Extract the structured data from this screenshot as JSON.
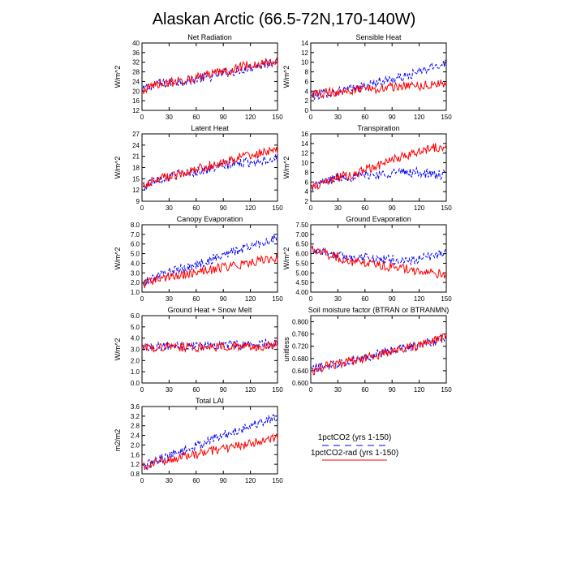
{
  "figure_title": "Alaskan Arctic (66.5-72N,170-140W)",
  "colors": {
    "series_a": "#0000ff",
    "series_b": "#ff0000",
    "axis": "#000000",
    "background": "#ffffff"
  },
  "legend": {
    "placement": "right of the bottom panel",
    "entries": [
      {
        "label": "1pctCO2 (yrs 1-150)",
        "color": "#0000ff",
        "style": "dashed"
      },
      {
        "label": "1pctCO2-rad (yrs 1-150)",
        "color": "#ff0000",
        "style": "solid"
      }
    ]
  },
  "chart_data": [
    {
      "type": "line",
      "title": "Net Radiation",
      "ylabel": "W/m^2",
      "xlim": [
        0,
        150
      ],
      "x_ticks": [
        "0",
        "30",
        "60",
        "90",
        "120",
        "150"
      ],
      "ylim": [
        12,
        40
      ],
      "y_ticks": [
        "12",
        "16",
        "20",
        "24",
        "28",
        "32",
        "36",
        "40"
      ],
      "grid": false,
      "series": [
        {
          "name": "1pctCO2 (yrs 1-150)",
          "color": "#0000ff",
          "style": "dashed",
          "x": [
            1,
            15,
            30,
            45,
            60,
            75,
            90,
            105,
            120,
            135,
            150
          ],
          "values": [
            20.5,
            23,
            23.5,
            24,
            25,
            26,
            27.5,
            28.5,
            30,
            31,
            33
          ]
        },
        {
          "name": "1pctCO2-rad (yrs 1-150)",
          "color": "#ff0000",
          "style": "solid",
          "x": [
            1,
            15,
            30,
            45,
            60,
            75,
            90,
            105,
            120,
            135,
            150
          ],
          "values": [
            20,
            23,
            23.5,
            24.5,
            25.5,
            27,
            28,
            29.5,
            31,
            31.5,
            32
          ]
        }
      ]
    },
    {
      "type": "line",
      "title": "Sensible Heat",
      "ylabel": "W/m^2",
      "xlim": [
        0,
        150
      ],
      "x_ticks": [
        "0",
        "30",
        "60",
        "90",
        "120",
        "150"
      ],
      "ylim": [
        0,
        14
      ],
      "y_ticks": [
        "0",
        "2",
        "4",
        "6",
        "8",
        "10",
        "12",
        "14"
      ],
      "grid": false,
      "series": [
        {
          "name": "1pctCO2 (yrs 1-150)",
          "color": "#0000ff",
          "style": "dashed",
          "x": [
            1,
            15,
            30,
            45,
            60,
            75,
            90,
            105,
            120,
            135,
            150
          ],
          "values": [
            3,
            3.5,
            4,
            4.5,
            5,
            6,
            6.5,
            7,
            8,
            9,
            10
          ]
        },
        {
          "name": "1pctCO2-rad (yrs 1-150)",
          "color": "#ff0000",
          "style": "solid",
          "x": [
            1,
            15,
            30,
            45,
            60,
            75,
            90,
            105,
            120,
            135,
            150
          ],
          "values": [
            3.5,
            3.5,
            4,
            4,
            4.5,
            4.5,
            5,
            5,
            5,
            5.5,
            5.5
          ]
        }
      ]
    },
    {
      "type": "line",
      "title": "Latent Heat",
      "ylabel": "W/m^2",
      "xlim": [
        0,
        150
      ],
      "x_ticks": [
        "0",
        "30",
        "60",
        "90",
        "120",
        "150"
      ],
      "ylim": [
        9,
        27
      ],
      "y_ticks": [
        "9",
        "12",
        "15",
        "18",
        "21",
        "24",
        "27"
      ],
      "grid": false,
      "series": [
        {
          "name": "1pctCO2 (yrs 1-150)",
          "color": "#0000ff",
          "style": "dashed",
          "x": [
            1,
            15,
            30,
            45,
            60,
            75,
            90,
            105,
            120,
            135,
            150
          ],
          "values": [
            12.5,
            15,
            15.5,
            16.5,
            17,
            17.5,
            18.5,
            19,
            19.5,
            20,
            20.5
          ]
        },
        {
          "name": "1pctCO2-rad (yrs 1-150)",
          "color": "#ff0000",
          "style": "solid",
          "x": [
            1,
            15,
            30,
            45,
            60,
            75,
            90,
            105,
            120,
            135,
            150
          ],
          "values": [
            13,
            15,
            15.5,
            16.5,
            17.5,
            18.5,
            19.5,
            20.5,
            21.5,
            22,
            22.5
          ]
        }
      ]
    },
    {
      "type": "line",
      "title": "Transpiration",
      "ylabel": "W/m^2",
      "xlim": [
        0,
        150
      ],
      "x_ticks": [
        "0",
        "30",
        "60",
        "90",
        "120",
        "150"
      ],
      "ylim": [
        2,
        16
      ],
      "y_ticks": [
        "2",
        "4",
        "6",
        "8",
        "10",
        "12",
        "14",
        "16"
      ],
      "grid": false,
      "series": [
        {
          "name": "1pctCO2 (yrs 1-150)",
          "color": "#0000ff",
          "style": "dashed",
          "x": [
            1,
            15,
            30,
            45,
            60,
            75,
            90,
            105,
            120,
            135,
            150
          ],
          "values": [
            5,
            6,
            7,
            7,
            7.5,
            7.5,
            8,
            8,
            8,
            7.5,
            7.5
          ]
        },
        {
          "name": "1pctCO2-rad (yrs 1-150)",
          "color": "#ff0000",
          "style": "solid",
          "x": [
            1,
            15,
            30,
            45,
            60,
            75,
            90,
            105,
            120,
            135,
            150
          ],
          "values": [
            5,
            6,
            7,
            7.5,
            8.5,
            9.5,
            10.5,
            11.5,
            12.5,
            13,
            13.5
          ]
        }
      ]
    },
    {
      "type": "line",
      "title": "Canopy Evaporation",
      "ylabel": "W/m^2",
      "xlim": [
        0,
        150
      ],
      "x_ticks": [
        "0",
        "30",
        "60",
        "90",
        "120",
        "150"
      ],
      "ylim": [
        1.0,
        8.0
      ],
      "y_ticks": [
        "1.0",
        "2.0",
        "3.0",
        "4.0",
        "5.0",
        "6.0",
        "7.0",
        "8.0"
      ],
      "grid": false,
      "series": [
        {
          "name": "1pctCO2 (yrs 1-150)",
          "color": "#0000ff",
          "style": "dashed",
          "x": [
            1,
            15,
            30,
            45,
            60,
            75,
            90,
            105,
            120,
            135,
            150
          ],
          "values": [
            1.8,
            2.6,
            3.1,
            3.4,
            3.8,
            4.3,
            4.9,
            5.3,
            5.8,
            6.2,
            6.6
          ]
        },
        {
          "name": "1pctCO2-rad (yrs 1-150)",
          "color": "#ff0000",
          "style": "solid",
          "x": [
            1,
            15,
            30,
            45,
            60,
            75,
            90,
            105,
            120,
            135,
            150
          ],
          "values": [
            1.8,
            2.3,
            2.6,
            2.8,
            3.0,
            3.3,
            3.6,
            3.8,
            4.1,
            4.4,
            4.6
          ]
        }
      ]
    },
    {
      "type": "line",
      "title": "Ground Evaporation",
      "ylabel": "W/m^2",
      "xlim": [
        0,
        150
      ],
      "x_ticks": [
        "0",
        "30",
        "60",
        "90",
        "120",
        "150"
      ],
      "ylim": [
        4.0,
        7.5
      ],
      "y_ticks": [
        "4.00",
        "4.50",
        "5.00",
        "5.50",
        "6.00",
        "6.50",
        "7.00",
        "7.50"
      ],
      "grid": false,
      "series": [
        {
          "name": "1pctCO2 (yrs 1-150)",
          "color": "#0000ff",
          "style": "dashed",
          "x": [
            1,
            15,
            30,
            45,
            60,
            75,
            90,
            105,
            120,
            135,
            150
          ],
          "values": [
            6.2,
            6.1,
            5.9,
            5.8,
            5.8,
            5.7,
            5.7,
            5.6,
            5.7,
            5.9,
            6.1
          ]
        },
        {
          "name": "1pctCO2-rad (yrs 1-150)",
          "color": "#ff0000",
          "style": "solid",
          "x": [
            1,
            15,
            30,
            45,
            60,
            75,
            90,
            105,
            120,
            135,
            150
          ],
          "values": [
            6.2,
            6.0,
            5.8,
            5.6,
            5.5,
            5.4,
            5.3,
            5.2,
            5.1,
            5.0,
            4.9
          ]
        }
      ]
    },
    {
      "type": "line",
      "title": "Ground Heat + Snow Melt",
      "ylabel": "W/m^2",
      "xlim": [
        0,
        150
      ],
      "x_ticks": [
        "0",
        "30",
        "60",
        "90",
        "120",
        "150"
      ],
      "ylim": [
        0.0,
        6.0
      ],
      "y_ticks": [
        "0.0",
        "1.0",
        "2.0",
        "3.0",
        "4.0",
        "5.0",
        "6.0"
      ],
      "grid": false,
      "series": [
        {
          "name": "1pctCO2 (yrs 1-150)",
          "color": "#0000ff",
          "style": "dashed",
          "x": [
            1,
            15,
            30,
            45,
            60,
            75,
            90,
            105,
            120,
            135,
            150
          ],
          "values": [
            3.2,
            3.3,
            3.3,
            3.3,
            3.3,
            3.4,
            3.4,
            3.4,
            3.4,
            3.5,
            3.5
          ]
        },
        {
          "name": "1pctCO2-rad (yrs 1-150)",
          "color": "#ff0000",
          "style": "solid",
          "x": [
            1,
            15,
            30,
            45,
            60,
            75,
            90,
            105,
            120,
            135,
            150
          ],
          "values": [
            3.2,
            3.2,
            3.2,
            3.2,
            3.2,
            3.2,
            3.3,
            3.3,
            3.3,
            3.3,
            3.4
          ]
        }
      ]
    },
    {
      "type": "line",
      "title": "Soil moisture factor (BTRAN or BTRANMN)",
      "ylabel": "unitless",
      "xlim": [
        0,
        150
      ],
      "x_ticks": [
        "0",
        "30",
        "60",
        "90",
        "120",
        "150"
      ],
      "ylim": [
        0.6,
        0.82
      ],
      "y_ticks": [
        "0.600",
        "0.640",
        "0.680",
        "0.720",
        "0.760",
        "0.800"
      ],
      "grid": false,
      "series": [
        {
          "name": "1pctCO2 (yrs 1-150)",
          "color": "#0000ff",
          "style": "dashed",
          "x": [
            1,
            15,
            30,
            45,
            60,
            75,
            90,
            105,
            120,
            135,
            150
          ],
          "values": [
            0.645,
            0.655,
            0.665,
            0.675,
            0.685,
            0.695,
            0.705,
            0.715,
            0.725,
            0.735,
            0.745
          ]
        },
        {
          "name": "1pctCO2-rad (yrs 1-150)",
          "color": "#ff0000",
          "style": "solid",
          "x": [
            1,
            15,
            30,
            45,
            60,
            75,
            90,
            105,
            120,
            135,
            150
          ],
          "values": [
            0.64,
            0.652,
            0.662,
            0.672,
            0.682,
            0.692,
            0.702,
            0.712,
            0.722,
            0.735,
            0.75
          ]
        }
      ]
    },
    {
      "type": "line",
      "title": "Total LAI",
      "ylabel": "m2/m2",
      "xlim": [
        0,
        150
      ],
      "x_ticks": [
        "0",
        "30",
        "60",
        "90",
        "120",
        "150"
      ],
      "ylim": [
        0.8,
        3.6
      ],
      "y_ticks": [
        "0.8",
        "1.2",
        "1.6",
        "2.0",
        "2.4",
        "2.8",
        "3.2",
        "3.6"
      ],
      "grid": false,
      "series": [
        {
          "name": "1pctCO2 (yrs 1-150)",
          "color": "#0000ff",
          "style": "dashed",
          "x": [
            1,
            15,
            30,
            45,
            60,
            75,
            90,
            105,
            120,
            135,
            150
          ],
          "values": [
            1.05,
            1.35,
            1.55,
            1.75,
            1.95,
            2.2,
            2.4,
            2.6,
            2.8,
            3.0,
            3.15
          ]
        },
        {
          "name": "1pctCO2-rad (yrs 1-150)",
          "color": "#ff0000",
          "style": "solid",
          "x": [
            1,
            15,
            30,
            45,
            60,
            75,
            90,
            105,
            120,
            135,
            150
          ],
          "values": [
            1.05,
            1.25,
            1.4,
            1.5,
            1.6,
            1.75,
            1.85,
            1.95,
            2.05,
            2.15,
            2.3
          ]
        }
      ]
    }
  ]
}
